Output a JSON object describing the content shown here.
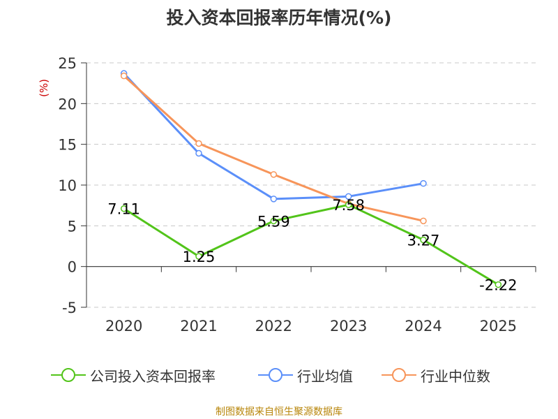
{
  "chart_data": {
    "type": "line",
    "title": "投入资本回报率历年情况(%)",
    "ylabel": "(%)",
    "xlabel": "",
    "categories": [
      "2020",
      "2021",
      "2022",
      "2023",
      "2024",
      "2025"
    ],
    "ylim": [
      -5,
      25
    ],
    "yticks": [
      -5,
      0,
      5,
      10,
      15,
      20,
      25
    ],
    "grid": true,
    "legend_position": "bottom",
    "series": [
      {
        "name": "公司投入资本回报率",
        "color": "#52c41a",
        "values": [
          7.11,
          1.25,
          5.59,
          7.58,
          3.27,
          -2.22
        ],
        "labels": [
          "7.11",
          "1.25",
          "5.59",
          "7.58",
          "3.27",
          "-2.22"
        ]
      },
      {
        "name": "行业均值",
        "color": "#5b8ff9",
        "values": [
          23.7,
          13.9,
          8.3,
          8.6,
          10.2,
          null
        ]
      },
      {
        "name": "行业中位数",
        "color": "#f7955a",
        "values": [
          23.4,
          15.1,
          11.3,
          7.7,
          5.6,
          null
        ]
      }
    ],
    "source": "制图数据来自恒生聚源数据库"
  }
}
